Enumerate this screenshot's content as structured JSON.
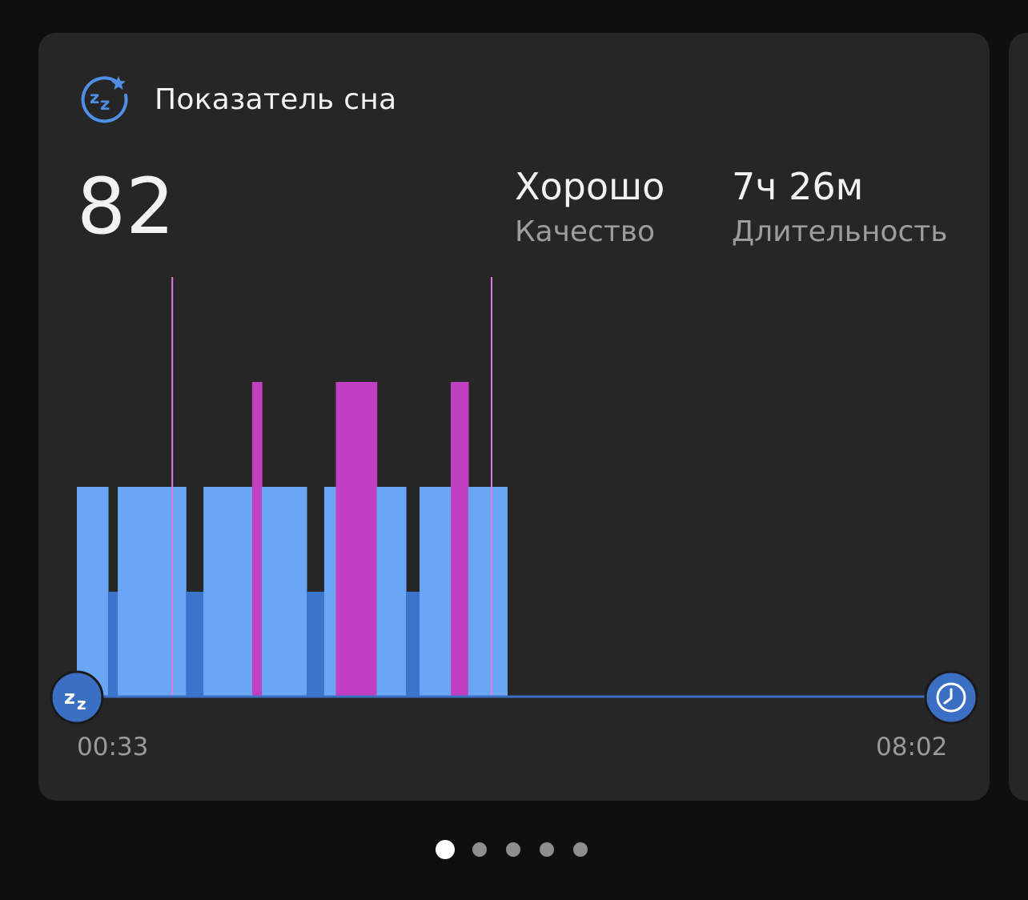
{
  "header": {
    "icon": "sleep-zz-star-icon",
    "title": "Показатель сна"
  },
  "summary": {
    "score": "82",
    "quality_value": "Хорошо",
    "quality_label": "Качество",
    "duration_value": "7ч 26м",
    "duration_label": "Длительность"
  },
  "colors": {
    "light": "#6ba6f5",
    "deep": "#3a75cb",
    "awake": "#c13fc1",
    "awake_line": "#e07ae0",
    "marker": "#3b6fc4"
  },
  "chart_data": {
    "type": "bar",
    "x_start": "00:33",
    "x_end": "08:02",
    "stage_levels": [
      "deep",
      "light",
      "awake"
    ],
    "segments": [
      {
        "start": "00:33",
        "end": "00:49",
        "stage": "light"
      },
      {
        "start": "00:49",
        "end": "00:54",
        "stage": "deep"
      },
      {
        "start": "00:54",
        "end": "01:29",
        "stage": "light"
      },
      {
        "start": "01:29",
        "end": "01:38",
        "stage": "deep"
      },
      {
        "start": "01:38",
        "end": "02:03",
        "stage": "light"
      },
      {
        "start": "02:03",
        "end": "02:08",
        "stage": "awake"
      },
      {
        "start": "02:08",
        "end": "02:31",
        "stage": "light"
      },
      {
        "start": "02:31",
        "end": "02:40",
        "stage": "deep"
      },
      {
        "start": "02:40",
        "end": "02:46",
        "stage": "light"
      },
      {
        "start": "02:46",
        "end": "03:07",
        "stage": "awake"
      },
      {
        "start": "03:07",
        "end": "03:22",
        "stage": "light"
      },
      {
        "start": "03:22",
        "end": "03:29",
        "stage": "deep"
      },
      {
        "start": "03:29",
        "end": "03:45",
        "stage": "light"
      },
      {
        "start": "03:45",
        "end": "03:54",
        "stage": "awake"
      },
      {
        "start": "03:54",
        "end": "04:14",
        "stage": "light"
      }
    ],
    "brief_awakenings": [
      "01:22",
      "04:06"
    ]
  },
  "start_marker_icon": "sleep-zz-icon",
  "end_marker_icon": "alarm-clock-icon",
  "pagination": {
    "pages": 5,
    "active": 1
  }
}
